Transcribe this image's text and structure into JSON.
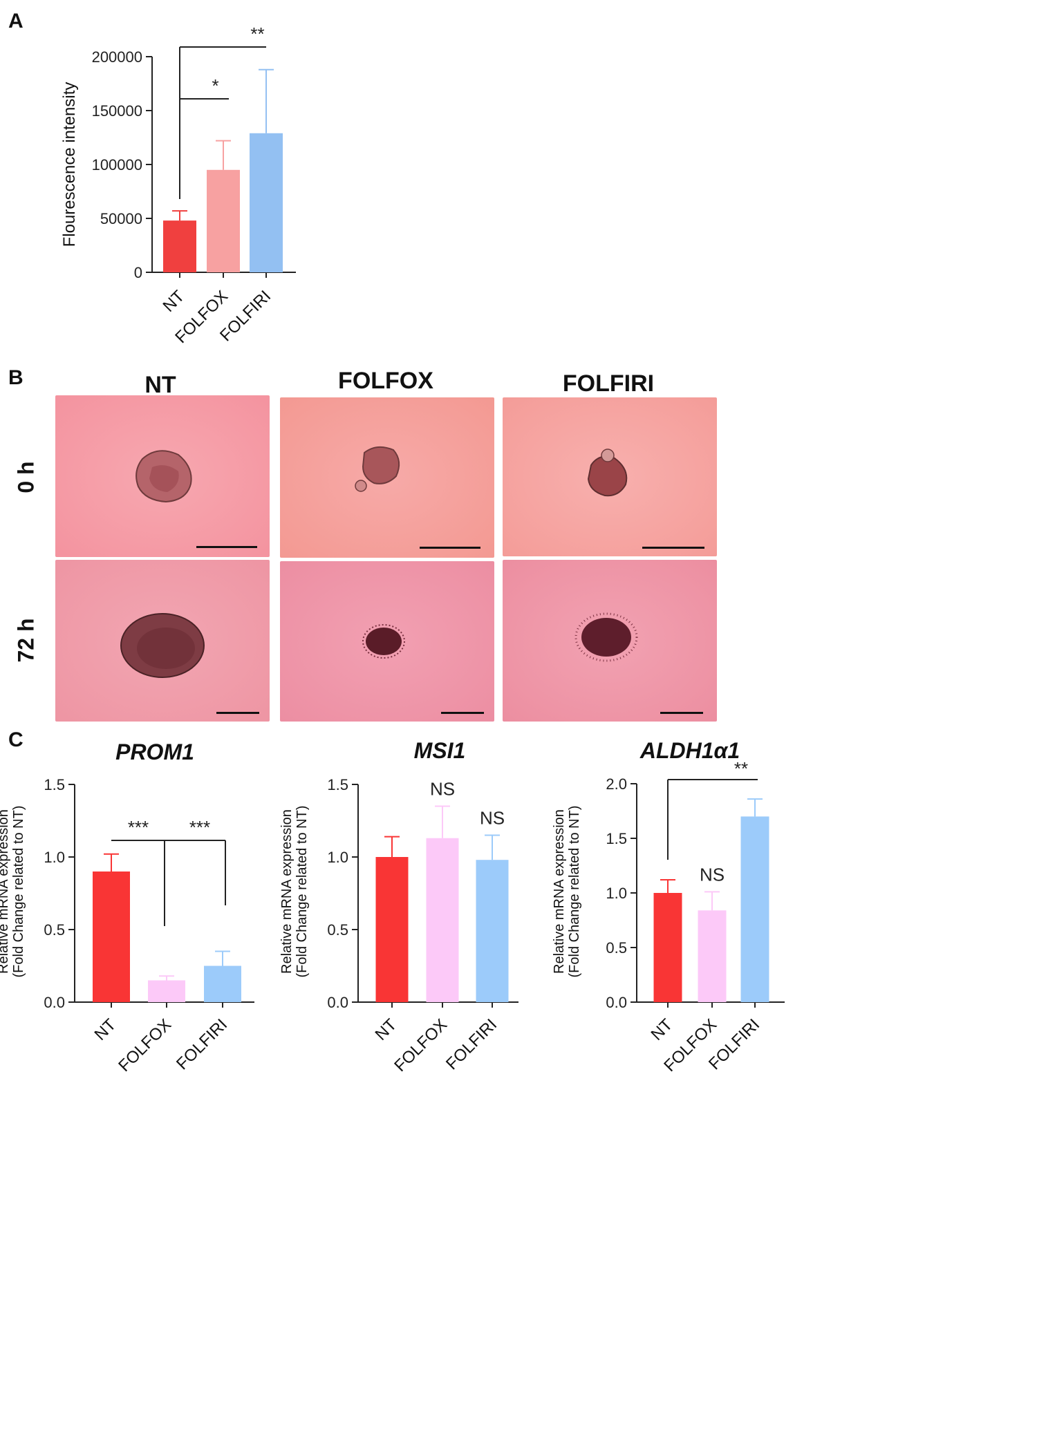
{
  "panels": {
    "a": "A",
    "b": "B",
    "c": "C"
  },
  "colors": {
    "nt": "#f0403f",
    "folfox_a": "#f7a1a1",
    "folfiri_a": "#93c0f2",
    "nt_c": "#f93535",
    "folfox_c": "#fcc9f8",
    "folfiri_c": "#9ccbfa"
  },
  "chart_data": [
    {
      "id": "A",
      "type": "bar",
      "categories": [
        "NT",
        "FOLFOX",
        "FOLFIRI"
      ],
      "values": [
        48000,
        95000,
        129000
      ],
      "errors": [
        9000,
        27000,
        59000
      ],
      "ylabel": "Flourescence intensity",
      "ylim": [
        0,
        200000
      ],
      "yticks": [
        "0",
        "50000",
        "100000",
        "150000",
        "200000"
      ],
      "significance": [
        {
          "from": 0,
          "to": 1,
          "label": "*"
        },
        {
          "from": 0,
          "to": 2,
          "label": "**"
        }
      ]
    },
    {
      "id": "C1",
      "type": "bar",
      "title": "PROM1",
      "categories": [
        "NT",
        "FOLFOX",
        "FOLFIRI"
      ],
      "values": [
        0.9,
        0.15,
        0.25
      ],
      "errors": [
        0.12,
        0.03,
        0.1
      ],
      "ylabel": "Relative mRNA expression (Fold Change related to NT)",
      "ylim": [
        0,
        1.5
      ],
      "yticks": [
        "0.0",
        "0.5",
        "1.0",
        "1.5"
      ],
      "significance": [
        {
          "from": 0,
          "to": 1,
          "label": "***"
        },
        {
          "from": 1,
          "to": 2,
          "label": "***"
        }
      ]
    },
    {
      "id": "C2",
      "type": "bar",
      "title": "MSI1",
      "categories": [
        "NT",
        "FOLFOX",
        "FOLFIRI"
      ],
      "values": [
        1.0,
        1.13,
        0.98
      ],
      "errors": [
        0.14,
        0.22,
        0.17
      ],
      "ylabel": "Relative mRNA expression (Fold Change related to NT)",
      "ylim": [
        0,
        1.5
      ],
      "yticks": [
        "0.0",
        "0.5",
        "1.0",
        "1.5"
      ],
      "bar_labels": [
        "",
        "NS",
        "NS"
      ]
    },
    {
      "id": "C3",
      "type": "bar",
      "title": "ALDH1α1",
      "categories": [
        "NT",
        "FOLFOX",
        "FOLFIRI"
      ],
      "values": [
        1.0,
        0.84,
        1.7
      ],
      "errors": [
        0.12,
        0.17,
        0.16
      ],
      "ylabel": "Relative mRNA expression (Fold Change related to NT)",
      "ylim": [
        0,
        2.0
      ],
      "yticks": [
        "0.0",
        "0.5",
        "1.0",
        "1.5",
        "2.0"
      ],
      "bar_labels": [
        "",
        "NS",
        ""
      ],
      "significance": [
        {
          "from": 0,
          "to": 2,
          "label": "**"
        }
      ]
    }
  ],
  "micrographs": {
    "columns": [
      "NT",
      "FOLFOX",
      "FOLFIRI"
    ],
    "rows": [
      "0 h",
      "72 h"
    ]
  }
}
